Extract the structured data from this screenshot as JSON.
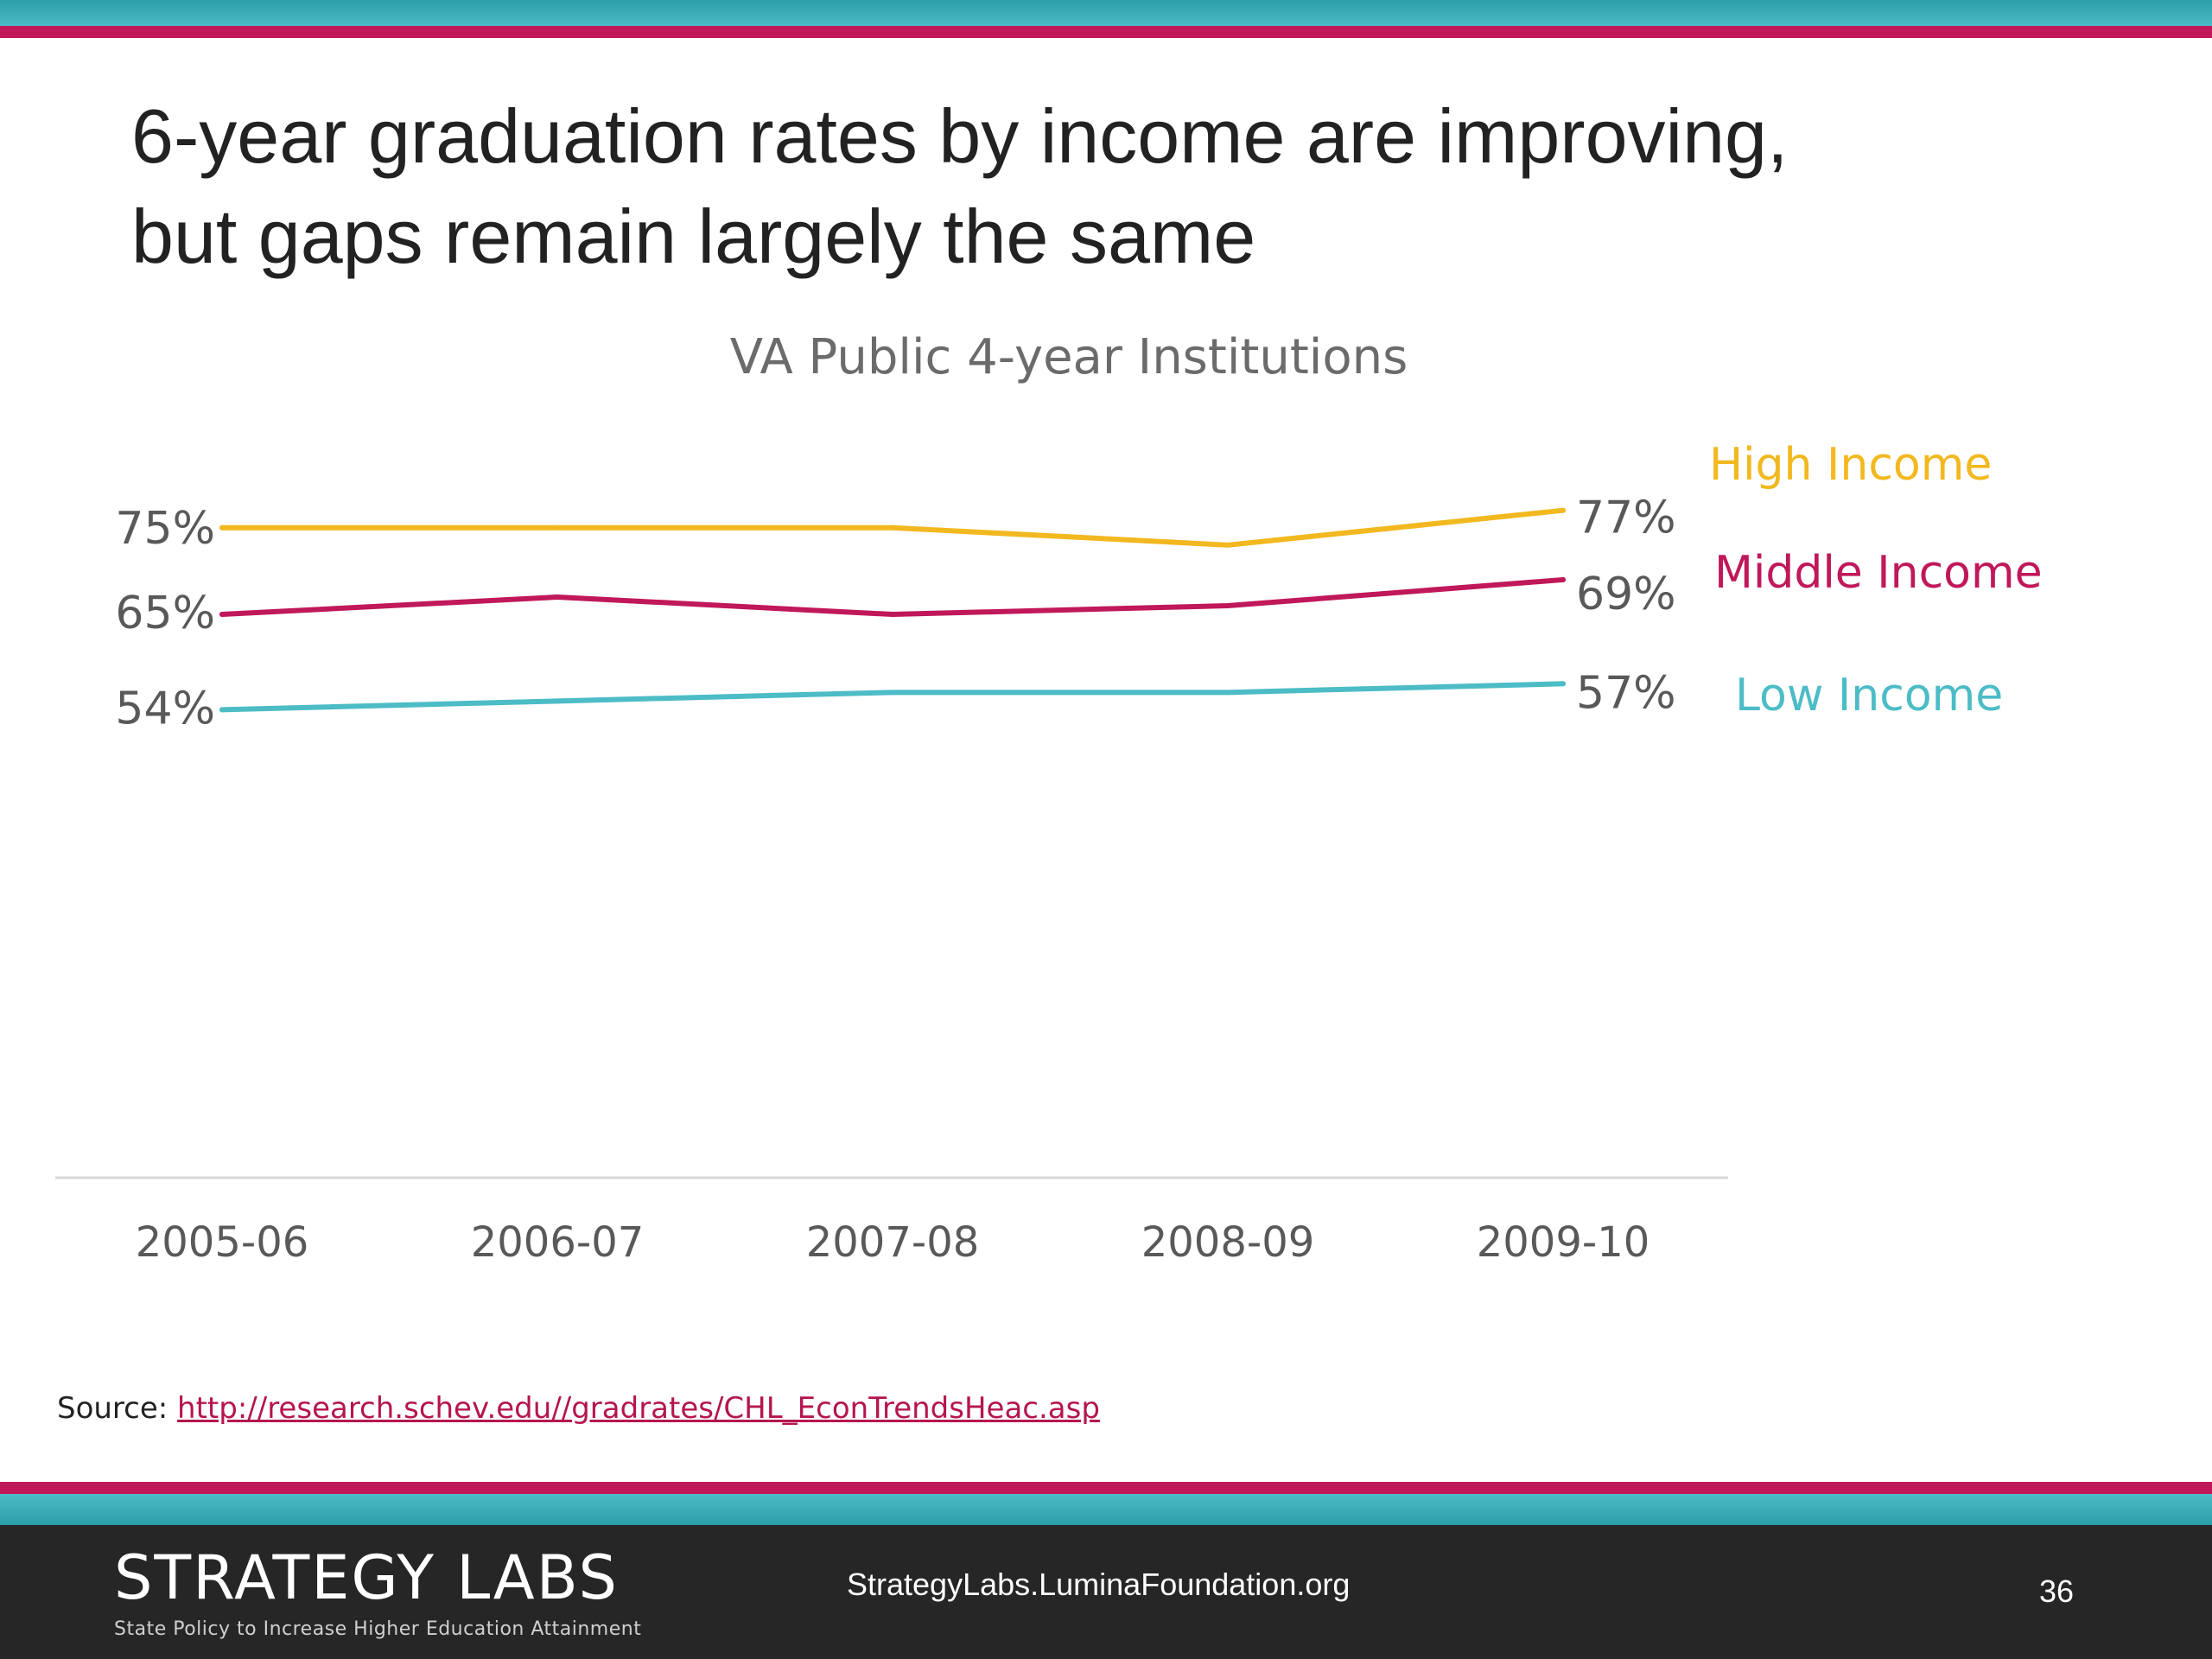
{
  "slide": {
    "title_line1": "6-year graduation rates by income are improving,",
    "title_line2": "but gaps remain largely the same",
    "source_label": "Source:",
    "source_url": "http://research.schev.edu//gradrates/CHL_EconTrendsHeac.asp",
    "footer_brand": "STRATEGY LABS",
    "footer_tagline": "State Policy to Increase Higher Education Attainment",
    "footer_url": "StrategyLabs.LuminaFoundation.org",
    "page_number": "36"
  },
  "colors": {
    "teal": "#4cbcc6",
    "magenta": "#c0185a",
    "gold": "#f2b81f",
    "footer_bg": "#262626",
    "axis_text": "#595959"
  },
  "chart_data": {
    "type": "line",
    "title": "VA Public 4-year Institutions",
    "xlabel": "",
    "ylabel": "",
    "categories": [
      "2005-06",
      "2006-07",
      "2007-08",
      "2008-09",
      "2009-10"
    ],
    "ylim": [
      0,
      100
    ],
    "grid": false,
    "legend": "right",
    "series": [
      {
        "name": "High Income",
        "values": [
          75,
          75,
          75,
          73,
          77
        ],
        "color": "#f2b81f",
        "start_label": "75%",
        "end_label": "77%"
      },
      {
        "name": "Middle Income",
        "values": [
          65,
          67,
          65,
          66,
          69
        ],
        "color": "#c0185a",
        "start_label": "65%",
        "end_label": "69%"
      },
      {
        "name": "Low Income",
        "values": [
          54,
          55,
          56,
          56,
          57
        ],
        "color": "#4cbcc6",
        "start_label": "54%",
        "end_label": "57%"
      }
    ]
  }
}
